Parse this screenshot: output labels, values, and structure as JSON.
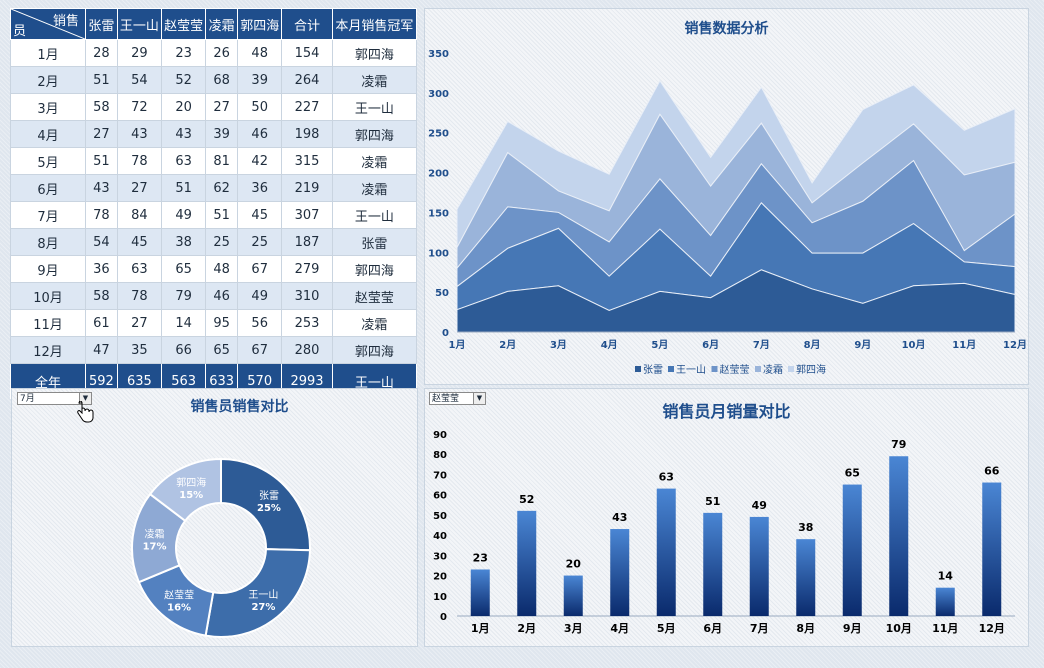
{
  "table": {
    "corner_top": "销售",
    "corner_bottom": "员",
    "headers": [
      "张雷",
      "王一山",
      "赵莹莹",
      "凌霜",
      "郭四海",
      "合计",
      "本月销售冠军"
    ],
    "rows": [
      {
        "month": "1月",
        "v": [
          "28",
          "29",
          "23",
          "26",
          "48",
          "154"
        ],
        "champ": "郭四海"
      },
      {
        "month": "2月",
        "v": [
          "51",
          "54",
          "52",
          "68",
          "39",
          "264"
        ],
        "champ": "凌霜"
      },
      {
        "month": "3月",
        "v": [
          "58",
          "72",
          "20",
          "27",
          "50",
          "227"
        ],
        "champ": "王一山"
      },
      {
        "month": "4月",
        "v": [
          "27",
          "43",
          "43",
          "39",
          "46",
          "198"
        ],
        "champ": "郭四海"
      },
      {
        "month": "5月",
        "v": [
          "51",
          "78",
          "63",
          "81",
          "42",
          "315"
        ],
        "champ": "凌霜"
      },
      {
        "month": "6月",
        "v": [
          "43",
          "27",
          "51",
          "62",
          "36",
          "219"
        ],
        "champ": "凌霜"
      },
      {
        "month": "7月",
        "v": [
          "78",
          "84",
          "49",
          "51",
          "45",
          "307"
        ],
        "champ": "王一山"
      },
      {
        "month": "8月",
        "v": [
          "54",
          "45",
          "38",
          "25",
          "25",
          "187"
        ],
        "champ": "张雷"
      },
      {
        "month": "9月",
        "v": [
          "36",
          "63",
          "65",
          "48",
          "67",
          "279"
        ],
        "champ": "郭四海"
      },
      {
        "month": "10月",
        "v": [
          "58",
          "78",
          "79",
          "46",
          "49",
          "310"
        ],
        "champ": "赵莹莹"
      },
      {
        "month": "11月",
        "v": [
          "61",
          "27",
          "14",
          "95",
          "56",
          "253"
        ],
        "champ": "凌霜"
      },
      {
        "month": "12月",
        "v": [
          "47",
          "35",
          "66",
          "65",
          "67",
          "280"
        ],
        "champ": "郭四海"
      }
    ],
    "footer": {
      "label": "全年",
      "v": [
        "592",
        "635",
        "563",
        "633",
        "570",
        "2993"
      ],
      "champ": "王一山"
    }
  },
  "area_panel": {
    "title": "销售数据分析"
  },
  "donut_panel": {
    "title": "销售员销售对比",
    "dropdown_value": "7月"
  },
  "bar_panel": {
    "title": "销售员月销量对比",
    "dropdown_value": "赵莹莹"
  },
  "colors": {
    "header_bg": "#1f4e8c",
    "s1": "#2d5b96",
    "s2": "#4677b5",
    "s3": "#6d93c8",
    "s4": "#9ab4da",
    "s5": "#c3d4ec",
    "bar_top": "#4a86d4",
    "bar_bottom": "#0a2a6c"
  },
  "chart_data": [
    {
      "type": "area",
      "stacked": true,
      "title": "销售数据分析",
      "categories": [
        "1月",
        "2月",
        "3月",
        "4月",
        "5月",
        "6月",
        "7月",
        "8月",
        "9月",
        "10月",
        "11月",
        "12月"
      ],
      "ylim": [
        0,
        350
      ],
      "yticks": [
        0,
        50,
        100,
        150,
        200,
        250,
        300,
        350
      ],
      "legend_position": "bottom",
      "series": [
        {
          "name": "张雷",
          "values": [
            28,
            51,
            58,
            27,
            51,
            43,
            78,
            54,
            36,
            58,
            61,
            47
          ]
        },
        {
          "name": "王一山",
          "values": [
            29,
            54,
            72,
            43,
            78,
            27,
            84,
            45,
            63,
            78,
            27,
            35
          ]
        },
        {
          "name": "赵莹莹",
          "values": [
            23,
            52,
            20,
            43,
            63,
            51,
            49,
            38,
            65,
            79,
            14,
            66
          ]
        },
        {
          "name": "凌霜",
          "values": [
            26,
            68,
            27,
            39,
            81,
            62,
            51,
            25,
            48,
            46,
            95,
            65
          ]
        },
        {
          "name": "郭四海",
          "values": [
            48,
            39,
            50,
            46,
            42,
            36,
            45,
            25,
            67,
            49,
            56,
            67
          ]
        }
      ]
    },
    {
      "type": "pie",
      "donut": true,
      "title": "销售员销售对比",
      "slices": [
        {
          "name": "张雷",
          "value": 78,
          "label": "25%"
        },
        {
          "name": "王一山",
          "value": 84,
          "label": "27%"
        },
        {
          "name": "赵莹莹",
          "value": 49,
          "label": "16%"
        },
        {
          "name": "凌霜",
          "value": 51,
          "label": "17%"
        },
        {
          "name": "郭四海",
          "value": 45,
          "label": "15%"
        }
      ]
    },
    {
      "type": "bar",
      "title": "销售员月销量对比",
      "categories": [
        "1月",
        "2月",
        "3月",
        "4月",
        "5月",
        "6月",
        "7月",
        "8月",
        "9月",
        "10月",
        "11月",
        "12月"
      ],
      "values": [
        23,
        52,
        20,
        43,
        63,
        51,
        49,
        38,
        65,
        79,
        14,
        66
      ],
      "ylim": [
        0,
        90
      ],
      "yticks": [
        0,
        10,
        20,
        30,
        40,
        50,
        60,
        70,
        80,
        90
      ]
    }
  ]
}
